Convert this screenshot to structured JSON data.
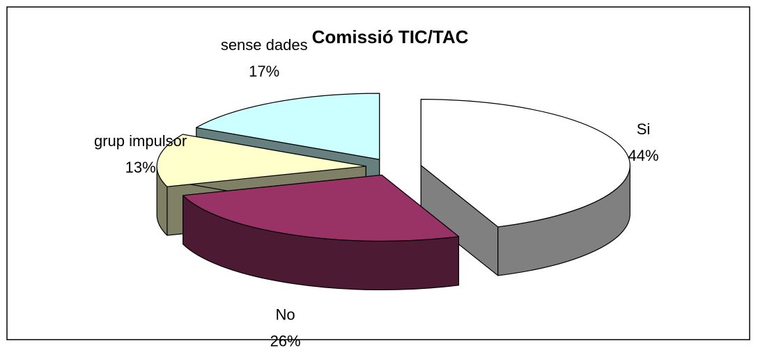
{
  "chart_data": {
    "type": "pie3d",
    "title": "Comissió TIC/TAC",
    "categories": [
      "Si",
      "No",
      "grup impulsor",
      "sense dades"
    ],
    "values": [
      44,
      26,
      13,
      17
    ],
    "value_labels": [
      "44%",
      "26%",
      "13%",
      "17%"
    ],
    "colors": [
      "#ffffff",
      "#993366",
      "#ffffcc",
      "#ccffff"
    ],
    "side_colors": [
      "#808080",
      "#4d1a33",
      "#808066",
      "#668080"
    ]
  }
}
